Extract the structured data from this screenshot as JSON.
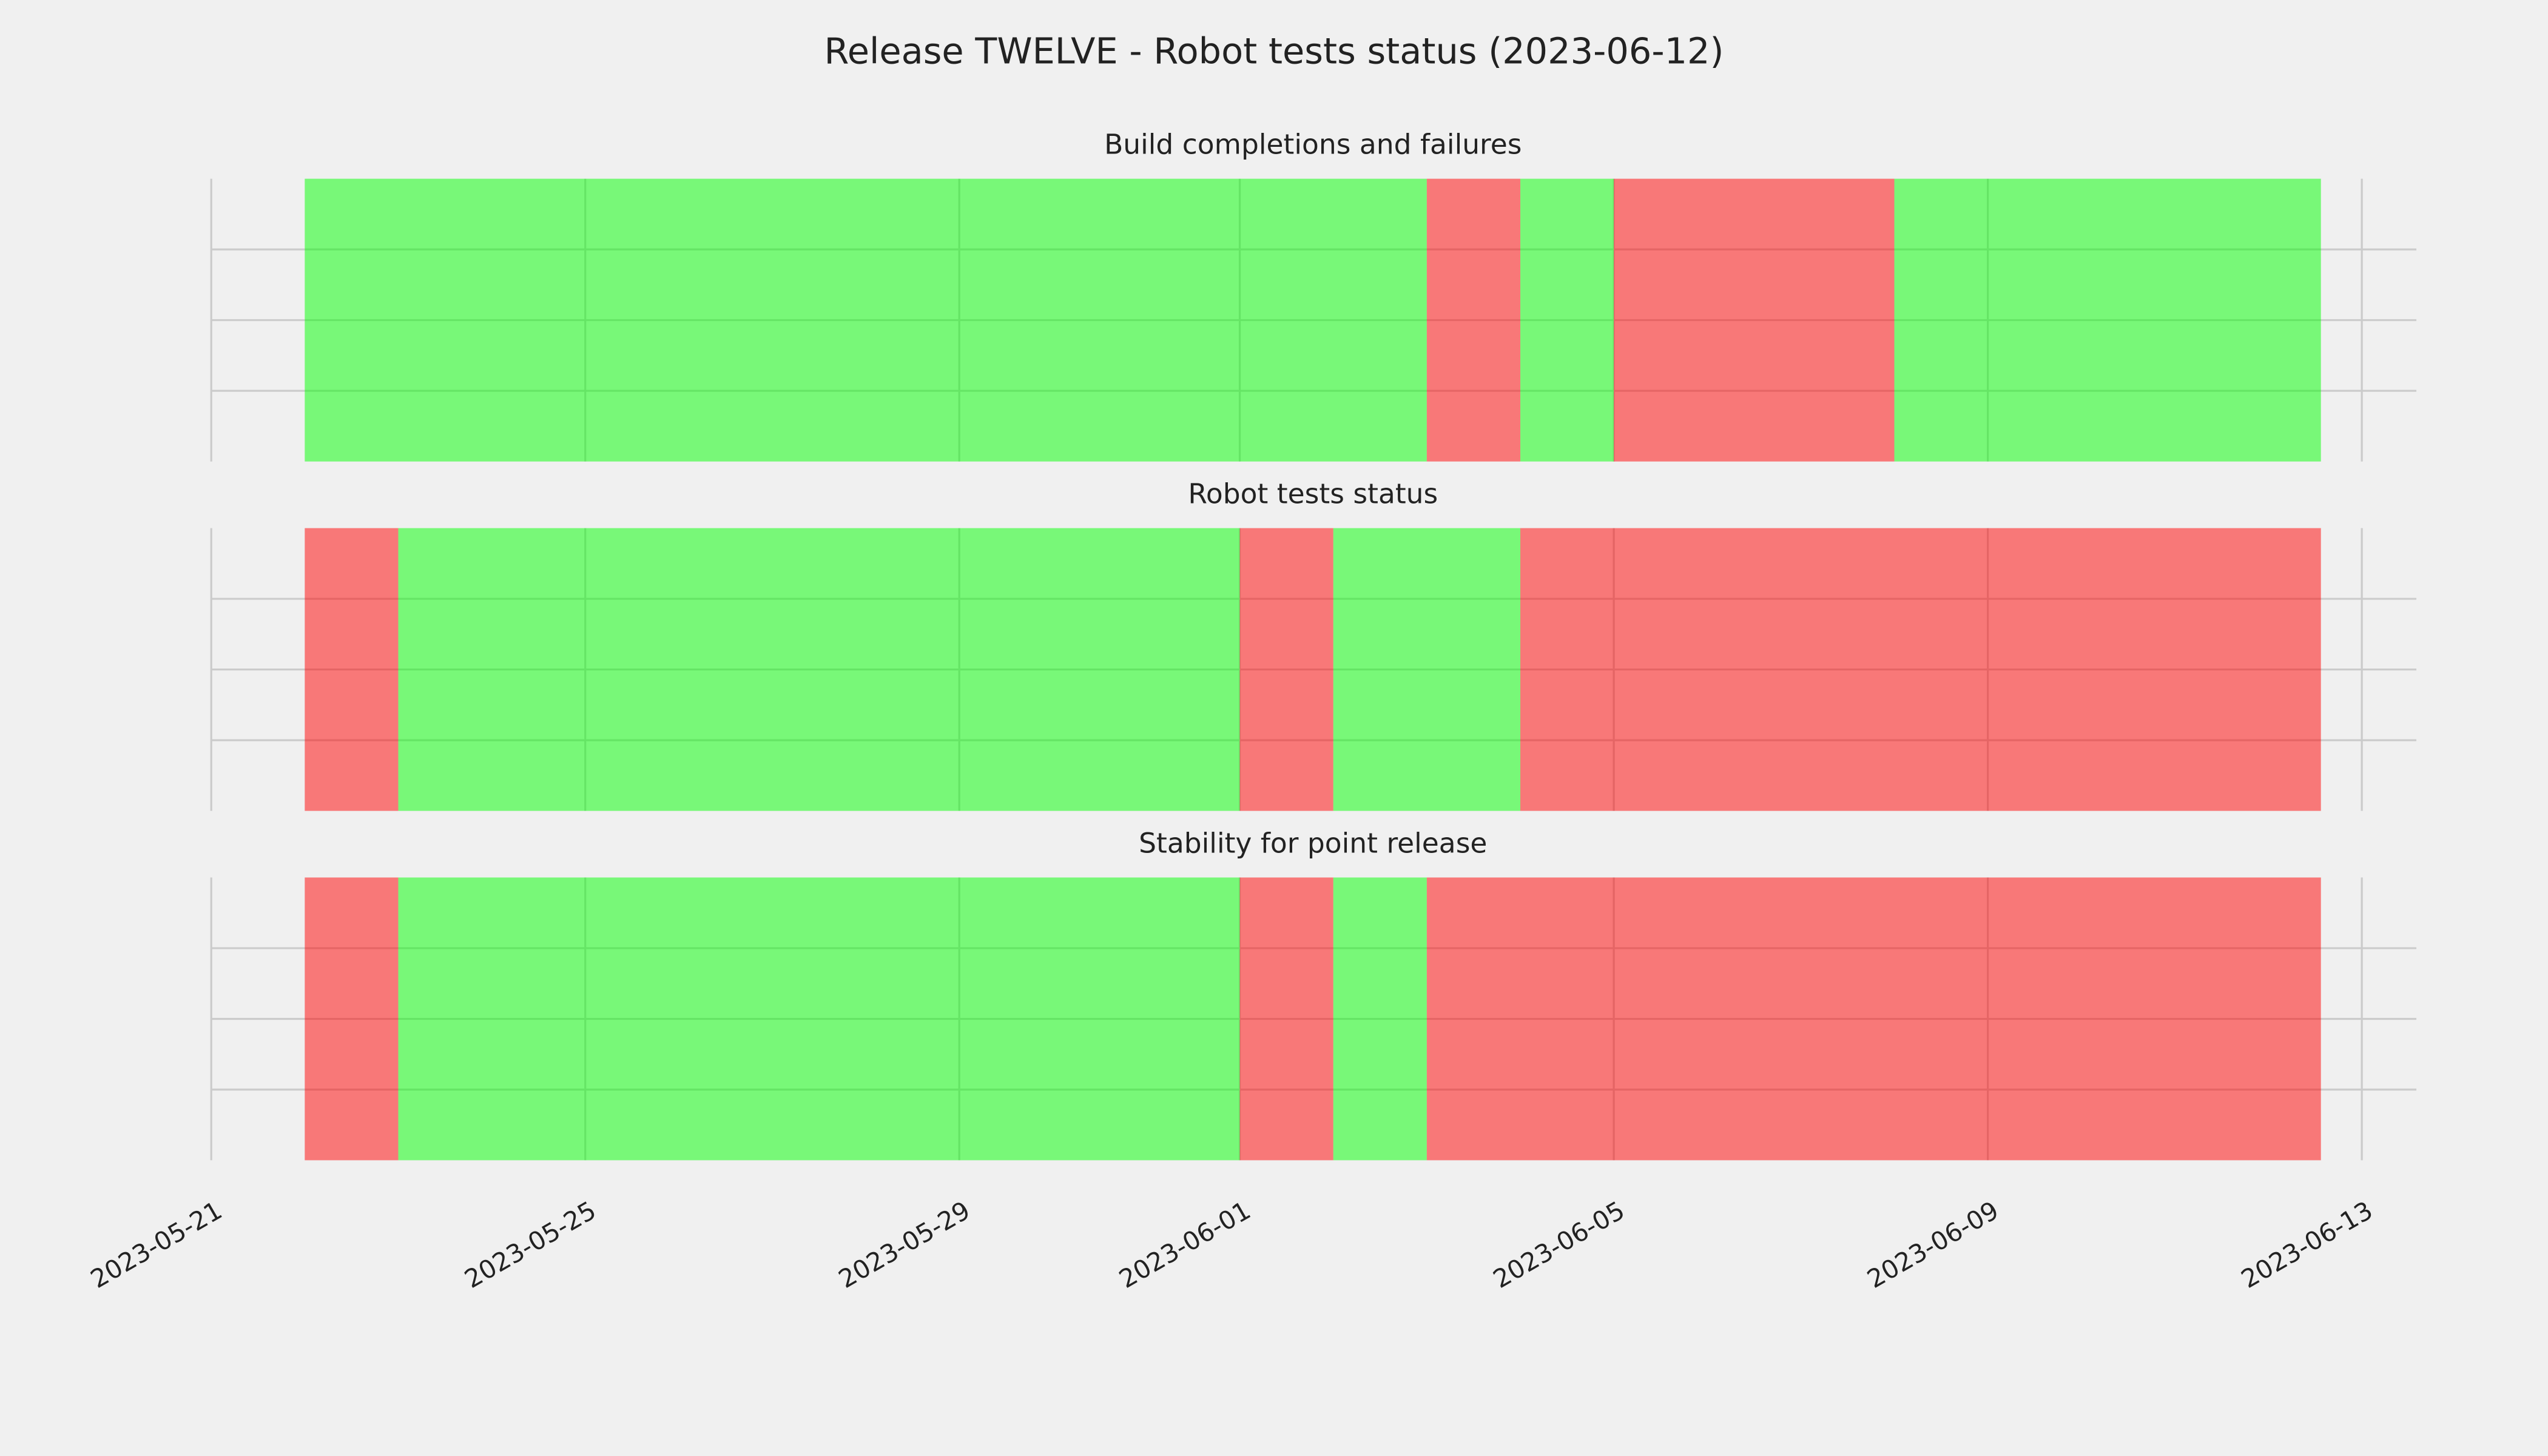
{
  "title": "Release TWELVE - Robot tests status (2023-06-12)",
  "chart_data": [
    {
      "type": "span",
      "title": "Build completions and failures",
      "starts": [
        "2023-05-22",
        "2023-06-03",
        "2023-06-04",
        "2023-06-05",
        "2023-06-08"
      ],
      "ends": [
        "2023-06-03",
        "2023-06-04",
        "2023-06-05",
        "2023-06-08",
        "2023-06-12 13:30"
      ],
      "colors": [
        "#00ff00",
        "#ff0000",
        "#00ff00",
        "#ff0000",
        "#00ff00"
      ],
      "xlim": [
        "2023-05-21",
        "2023-06-13 14:00"
      ],
      "xticks": [
        "2023-05-21",
        "2023-05-25",
        "2023-05-29",
        "2023-06-01",
        "2023-06-05",
        "2023-06-09",
        "2023-06-13"
      ],
      "ylim": [
        0,
        1
      ],
      "yticks": [
        0.25,
        0.5,
        0.75
      ],
      "grid": true
    },
    {
      "type": "span",
      "title": "Robot tests status",
      "starts": [
        "2023-05-22",
        "2023-05-23",
        "2023-06-01",
        "2023-06-02",
        "2023-06-04"
      ],
      "ends": [
        "2023-05-23",
        "2023-06-01",
        "2023-06-02",
        "2023-06-04",
        "2023-06-12 13:30"
      ],
      "colors": [
        "#ff0000",
        "#00ff00",
        "#ff0000",
        "#00ff00",
        "#ff0000"
      ],
      "xlim": [
        "2023-05-21",
        "2023-06-13 14:00"
      ],
      "xticks": [
        "2023-05-21",
        "2023-05-25",
        "2023-05-29",
        "2023-06-01",
        "2023-06-05",
        "2023-06-09",
        "2023-06-13"
      ],
      "ylim": [
        0,
        1
      ],
      "yticks": [
        0.25,
        0.5,
        0.75
      ],
      "grid": true
    },
    {
      "type": "span",
      "title": "Stability for point release",
      "starts": [
        "2023-05-22",
        "2023-05-23",
        "2023-06-01",
        "2023-06-02",
        "2023-06-03"
      ],
      "ends": [
        "2023-05-23",
        "2023-06-01",
        "2023-06-02",
        "2023-06-03",
        "2023-06-12 13:30"
      ],
      "colors": [
        "#ff0000",
        "#00ff00",
        "#ff0000",
        "#00ff00",
        "#ff0000"
      ],
      "xlim": [
        "2023-05-21",
        "2023-06-13 14:00"
      ],
      "xticks": [
        "2023-05-21",
        "2023-05-25",
        "2023-05-29",
        "2023-06-01",
        "2023-06-05",
        "2023-06-09",
        "2023-06-13"
      ],
      "ylim": [
        0,
        1
      ],
      "yticks": [
        0.25,
        0.5,
        0.75
      ],
      "grid": true,
      "xtick_labels": true
    }
  ]
}
